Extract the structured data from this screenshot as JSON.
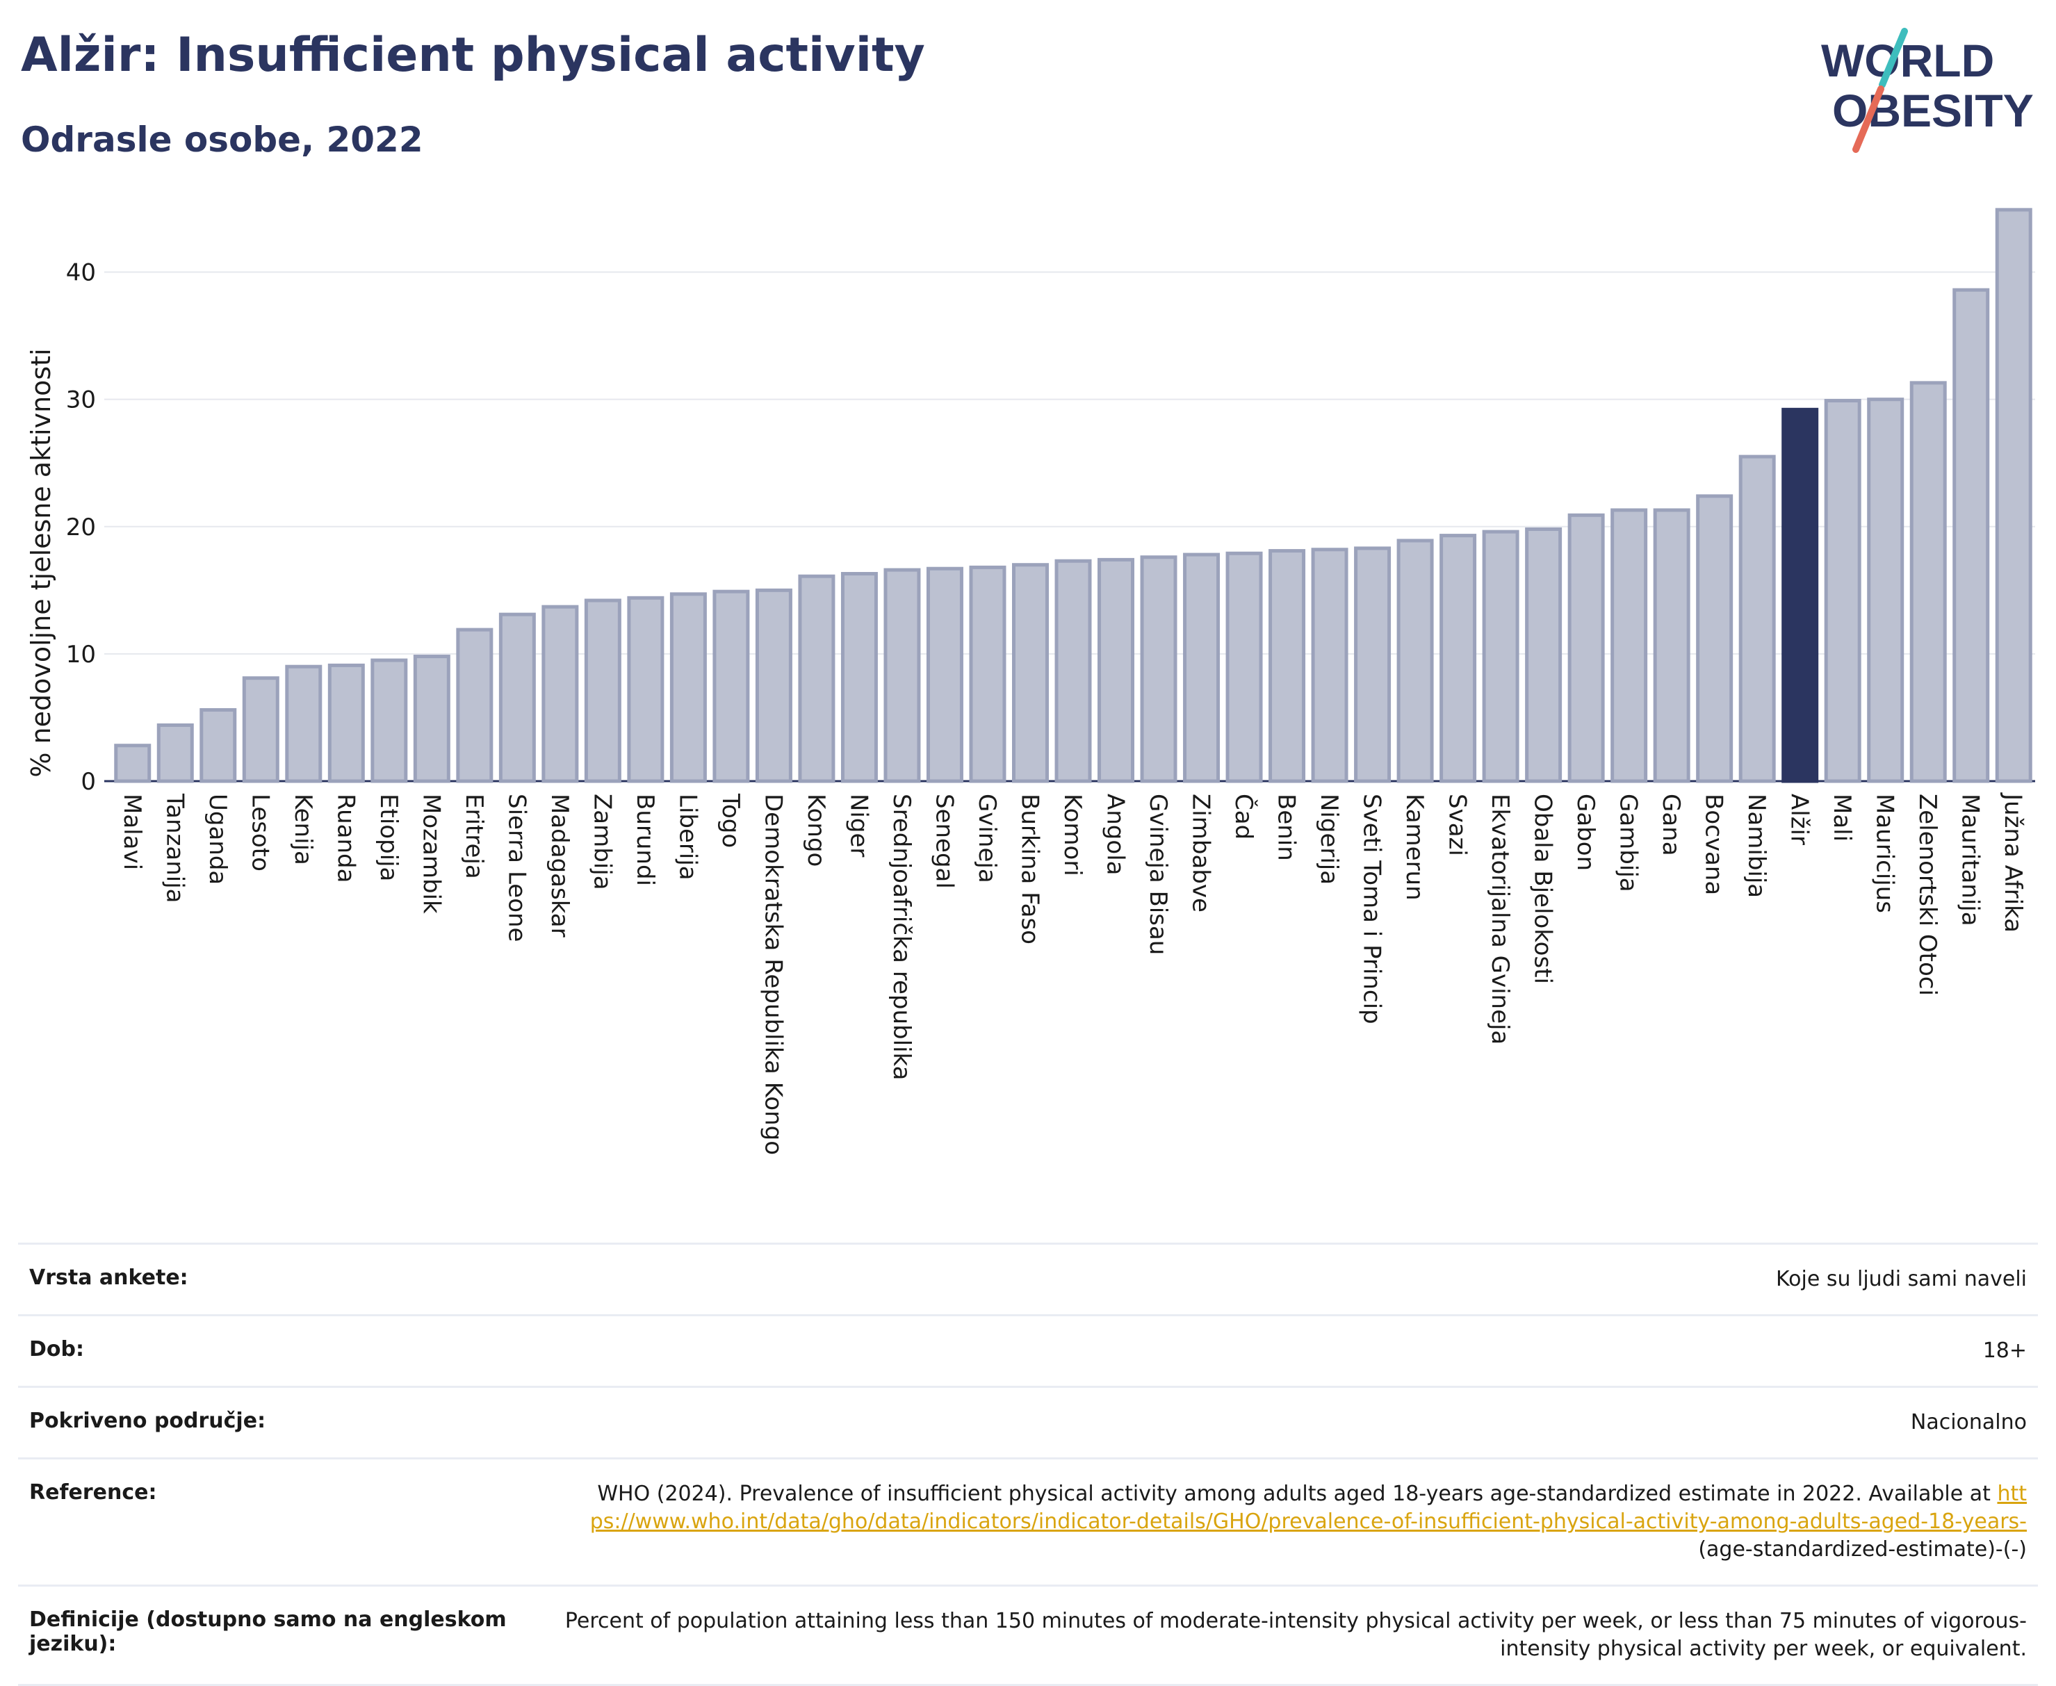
{
  "header": {
    "title": "Alžir: Insufficient physical activity",
    "subtitle": "Odrasle osobe, 2022",
    "logo_line1": "WORLD",
    "logo_line2": "OBESITY"
  },
  "colors": {
    "bar": "#bcc1d1",
    "bar_border": "#9ba2bb",
    "highlight": "#2b3560",
    "logo_teal": "#3ebdbd",
    "logo_coral": "#e56a57"
  },
  "chart_data": {
    "type": "bar",
    "ylabel": "% nedovoljne tjelesne aktivnosti",
    "ylim": [
      0,
      45
    ],
    "yticks": [
      0,
      10,
      20,
      30,
      40
    ],
    "grid": true,
    "highlight": "Alžir",
    "categories": [
      "Malavi",
      "Tanzanija",
      "Uganda",
      "Lesoto",
      "Kenija",
      "Ruanda",
      "Etiopija",
      "Mozambik",
      "Eritreja",
      "Sierra Leone",
      "Madagaskar",
      "Zambija",
      "Burundi",
      "Liberija",
      "Togo",
      "Demokratska Republika Kongo",
      "Kongo",
      "Niger",
      "Srednjoafrička republika",
      "Senegal",
      "Gvineja",
      "Burkina Faso",
      "Komori",
      "Angola",
      "Gvineja Bisau",
      "Zimbabve",
      "Čad",
      "Benin",
      "Nigerija",
      "Sveti Toma i Princip",
      "Kamerun",
      "Svazi",
      "Ekvatorijalna Gvineja",
      "Obala Bjelokosti",
      "Gabon",
      "Gambija",
      "Gana",
      "Bocvana",
      "Namibija",
      "Alžir",
      "Mali",
      "Mauricijus",
      "Zelenortski Otoci",
      "Mauritanija",
      "Južna Afrika"
    ],
    "values": [
      2.8,
      4.4,
      5.6,
      8.1,
      9.0,
      9.1,
      9.5,
      9.8,
      11.9,
      13.1,
      13.7,
      14.2,
      14.4,
      14.7,
      14.9,
      15.0,
      16.1,
      16.3,
      16.6,
      16.7,
      16.8,
      17.0,
      17.3,
      17.4,
      17.6,
      17.8,
      17.9,
      18.1,
      18.2,
      18.3,
      18.9,
      19.3,
      19.6,
      19.8,
      20.9,
      21.3,
      21.3,
      22.4,
      25.5,
      29.2,
      29.9,
      30.0,
      31.3,
      38.6,
      44.9
    ]
  },
  "info": {
    "survey_label": "Vrsta ankete:",
    "survey_value": "Koje su ljudi sami naveli",
    "age_label": "Dob:",
    "age_value": "18+",
    "coverage_label": "Pokriveno područje:",
    "coverage_value": "Nacionalno",
    "reference_label": "Reference:",
    "reference_text": "WHO (2024). Prevalence of insufficient physical activity among adults aged 18-years age-standardized estimate in 2022. Available at",
    "reference_link": "https://www.who.int/data/gho/data/indicators/indicator-details/GHO/prevalence-of-insufficient-physical-activity-among-adults-aged-18-years-",
    "reference_tail": "(age-standardized-estimate)-(-)",
    "definition_label": "Definicije (dostupno samo na engleskom jeziku):",
    "definition_value": "Percent of population attaining less than 150 minutes of moderate-intensity physical activity per week, or less than 75 minutes of vigorous-intensity physical activity per week, or equivalent."
  }
}
